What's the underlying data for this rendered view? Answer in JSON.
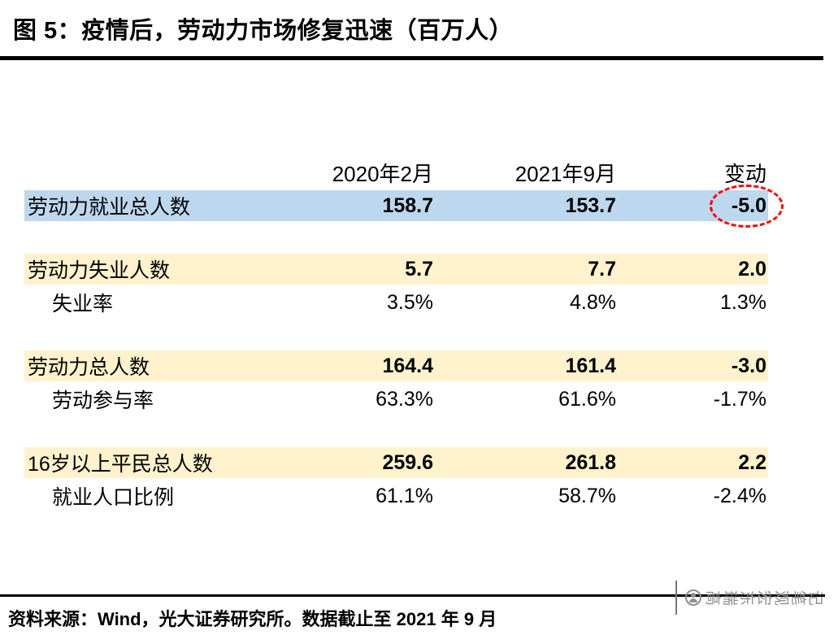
{
  "title": "图 5：疫情后，劳动力市场修复迅速（百万人）",
  "table": {
    "col_headers": [
      "2020年2月",
      "2021年9月",
      "变动"
    ],
    "groups": [
      [
        {
          "label": "劳动力就业总人数",
          "values": [
            "158.7",
            "153.7",
            "-5.0"
          ],
          "style": "blue",
          "indent": false,
          "circled": true
        }
      ],
      [
        {
          "label": "劳动力失业人数",
          "values": [
            "5.7",
            "7.7",
            "2.0"
          ],
          "style": "yellow",
          "indent": false,
          "circled": false
        },
        {
          "label": "失业率",
          "values": [
            "3.5%",
            "4.8%",
            "1.3%"
          ],
          "style": "plain",
          "indent": true,
          "circled": false
        }
      ],
      [
        {
          "label": "劳动力总人数",
          "values": [
            "164.4",
            "161.4",
            "-3.0"
          ],
          "style": "yellow",
          "indent": false,
          "circled": false
        },
        {
          "label": "劳动参与率",
          "values": [
            "63.3%",
            "61.6%",
            "-1.7%"
          ],
          "style": "plain",
          "indent": true,
          "circled": false
        }
      ],
      [
        {
          "label": "16岁以上平民总人数",
          "values": [
            "259.6",
            "261.8",
            "2.2"
          ],
          "style": "yellow",
          "indent": false,
          "circled": false
        },
        {
          "label": "就业人口比例",
          "values": [
            "61.1%",
            "58.7%",
            "-2.4%"
          ],
          "style": "plain",
          "indent": true,
          "circled": false
        }
      ]
    ]
  },
  "source": "资料来源：Wind，光大证券研究所。数据截止至 2021 年 9 月",
  "watermark": {
    "text": "高瑞东宏观笔记"
  },
  "colors": {
    "highlight_blue": "#BDD7EE",
    "highlight_yellow": "#FFF2CC",
    "circle_red": "#FF0000",
    "rule_black": "#000000",
    "watermark_gray": "#8F8F8F"
  },
  "chart_data": {
    "type": "table",
    "title": "图 5：疫情后，劳动力市场修复迅速（百万人）",
    "columns": [
      "",
      "2020年2月",
      "2021年9月",
      "变动"
    ],
    "rows": [
      [
        "劳动力就业总人数",
        "158.7",
        "153.7",
        "-5.0"
      ],
      [
        "劳动力失业人数",
        "5.7",
        "7.7",
        "2.0"
      ],
      [
        "失业率",
        "3.5%",
        "4.8%",
        "1.3%"
      ],
      [
        "劳动力总人数",
        "164.4",
        "161.4",
        "-3.0"
      ],
      [
        "劳动参与率",
        "63.3%",
        "61.6%",
        "-1.7%"
      ],
      [
        "16岁以上平民总人数",
        "259.6",
        "261.8",
        "2.2"
      ],
      [
        "就业人口比例",
        "61.1%",
        "58.7%",
        "-2.4%"
      ]
    ],
    "annotations": [
      "-5.0 is circled with a red dashed ellipse"
    ],
    "footnote": "资料来源：Wind，光大证券研究所。数据截止至 2021 年 9 月"
  }
}
